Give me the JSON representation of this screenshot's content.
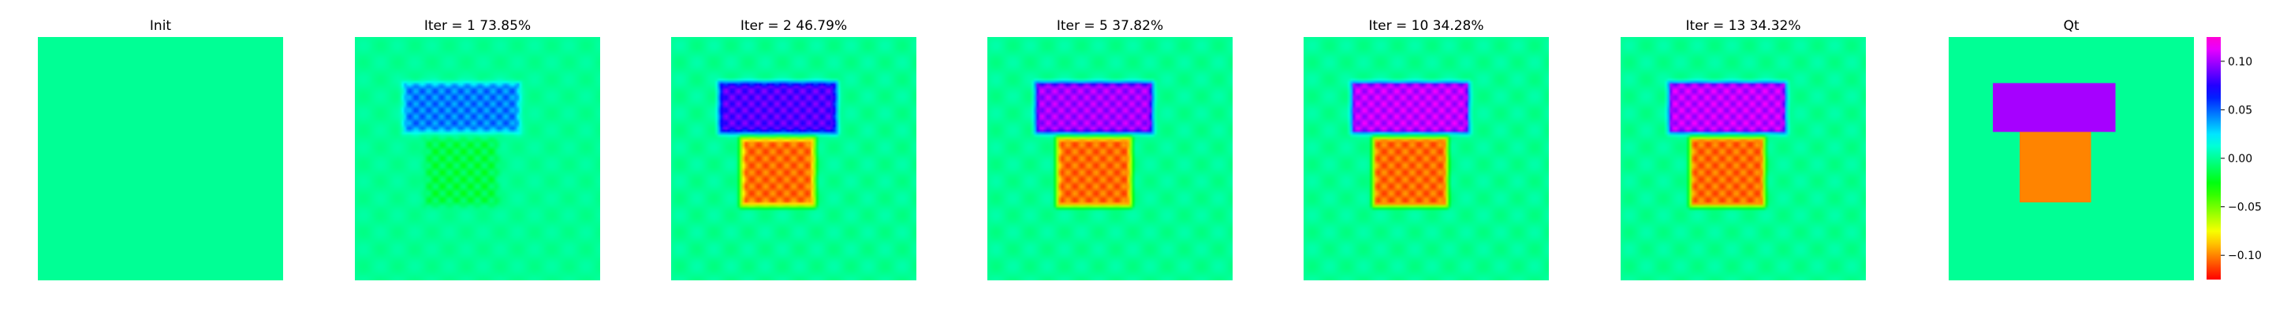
{
  "chart_data": {
    "type": "heatmap",
    "colormap": "gist_rainbow",
    "colorbar": {
      "vmin": -0.125,
      "vmax": 0.125,
      "ticks": [
        "0.10",
        "0.05",
        "0.00",
        "−0.05",
        "−0.10"
      ],
      "tick_values": [
        0.1,
        0.05,
        0.0,
        -0.05,
        -0.1
      ]
    },
    "panels": [
      {
        "title": "Init",
        "background": 0.0,
        "rect_value": 0.0,
        "square_value": 0.0,
        "halo": 0.0,
        "ripple": 0.0,
        "rect_blur": 0.0,
        "square_blur": 0.0
      },
      {
        "title": "Iter = 1    73.85%",
        "background": 0.0,
        "rect_value": 0.045,
        "square_value": -0.015,
        "halo": 0.0,
        "ripple": 0.003,
        "rect_blur": 0.18,
        "square_blur": 0.22
      },
      {
        "title": "Iter = 2    46.79%",
        "background": 0.0,
        "rect_value": 0.085,
        "square_value": -0.105,
        "halo": -0.05,
        "ripple": 0.004,
        "rect_blur": 0.12,
        "square_blur": 0.12
      },
      {
        "title": "Iter = 5    37.82%",
        "background": 0.0,
        "rect_value": 0.1,
        "square_value": -0.105,
        "halo": -0.06,
        "ripple": 0.004,
        "rect_blur": 0.08,
        "square_blur": 0.08
      },
      {
        "title": "Iter = 10    34.28%",
        "background": 0.0,
        "rect_value": 0.105,
        "square_value": -0.105,
        "halo": -0.06,
        "ripple": 0.004,
        "rect_blur": 0.06,
        "square_blur": 0.06
      },
      {
        "title": "Iter = 13    34.32%",
        "background": 0.0,
        "rect_value": 0.105,
        "square_value": -0.105,
        "halo": -0.06,
        "ripple": 0.004,
        "rect_blur": 0.06,
        "square_blur": 0.06
      },
      {
        "title": "Qt",
        "background": 0.0,
        "rect_value": 0.1,
        "square_value": -0.1,
        "halo": 0.0,
        "ripple": 0.0,
        "rect_blur": 0.0,
        "square_blur": 0.0,
        "sharp": true
      }
    ]
  }
}
